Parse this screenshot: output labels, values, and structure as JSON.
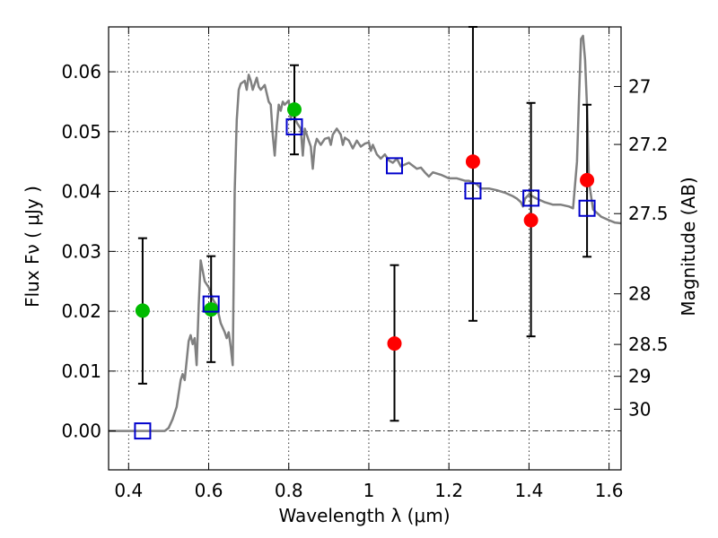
{
  "chart_data": {
    "type": "scatter",
    "xlabel": "Wavelength  λ (μm)",
    "ylabel_left": "Flux  Fν  ( μJy )",
    "ylabel_right": "Magnitude (AB)",
    "xlim": [
      0.35,
      1.63
    ],
    "ylim": [
      -0.0065,
      0.0675
    ],
    "grid": true,
    "x_ticks": [
      {
        "value": 0.4,
        "label": "0.4"
      },
      {
        "value": 0.6,
        "label": "0.6"
      },
      {
        "value": 0.8,
        "label": "0.8"
      },
      {
        "value": 1.0,
        "label": "1"
      },
      {
        "value": 1.2,
        "label": "1.2"
      },
      {
        "value": 1.4,
        "label": "1.4"
      },
      {
        "value": 1.6,
        "label": "1.6"
      }
    ],
    "y_ticks": [
      {
        "value": 0.0,
        "label": "0.00"
      },
      {
        "value": 0.01,
        "label": "0.01"
      },
      {
        "value": 0.02,
        "label": "0.02"
      },
      {
        "value": 0.03,
        "label": "0.03"
      },
      {
        "value": 0.04,
        "label": "0.04"
      },
      {
        "value": 0.05,
        "label": "0.05"
      },
      {
        "value": 0.06,
        "label": "0.06"
      }
    ],
    "right_ticks": [
      {
        "mag": 27.0,
        "label": "27"
      },
      {
        "mag": 27.2,
        "label": "27.2"
      },
      {
        "mag": 27.5,
        "label": "27.5"
      },
      {
        "mag": 28.0,
        "label": "28"
      },
      {
        "mag": 28.5,
        "label": "28.5"
      },
      {
        "mag": 29.0,
        "label": "29"
      },
      {
        "mag": 30.0,
        "label": "30"
      }
    ],
    "model_color": "#808080",
    "model_spectrum": [
      [
        0.35,
        0.0
      ],
      [
        0.49,
        0.0
      ],
      [
        0.5,
        0.0005
      ],
      [
        0.51,
        0.002
      ],
      [
        0.52,
        0.004
      ],
      [
        0.53,
        0.0085
      ],
      [
        0.535,
        0.0095
      ],
      [
        0.54,
        0.0085
      ],
      [
        0.55,
        0.015
      ],
      [
        0.555,
        0.016
      ],
      [
        0.56,
        0.0145
      ],
      [
        0.565,
        0.0155
      ],
      [
        0.57,
        0.011
      ],
      [
        0.575,
        0.021
      ],
      [
        0.58,
        0.0285
      ],
      [
        0.59,
        0.025
      ],
      [
        0.6,
        0.024
      ],
      [
        0.61,
        0.022
      ],
      [
        0.62,
        0.021
      ],
      [
        0.63,
        0.018
      ],
      [
        0.64,
        0.0165
      ],
      [
        0.645,
        0.0155
      ],
      [
        0.65,
        0.0165
      ],
      [
        0.655,
        0.014
      ],
      [
        0.66,
        0.011
      ],
      [
        0.665,
        0.04
      ],
      [
        0.67,
        0.052
      ],
      [
        0.675,
        0.057
      ],
      [
        0.68,
        0.058
      ],
      [
        0.69,
        0.0585
      ],
      [
        0.695,
        0.057
      ],
      [
        0.7,
        0.0595
      ],
      [
        0.705,
        0.0585
      ],
      [
        0.71,
        0.057
      ],
      [
        0.72,
        0.059
      ],
      [
        0.725,
        0.0575
      ],
      [
        0.73,
        0.057
      ],
      [
        0.74,
        0.0578
      ],
      [
        0.75,
        0.055
      ],
      [
        0.755,
        0.0545
      ],
      [
        0.76,
        0.0495
      ],
      [
        0.765,
        0.046
      ],
      [
        0.77,
        0.051
      ],
      [
        0.775,
        0.0545
      ],
      [
        0.78,
        0.0535
      ],
      [
        0.785,
        0.055
      ],
      [
        0.79,
        0.0545
      ],
      [
        0.8,
        0.0552
      ],
      [
        0.805,
        0.052
      ],
      [
        0.81,
        0.0535
      ],
      [
        0.82,
        0.0515
      ],
      [
        0.83,
        0.0505
      ],
      [
        0.835,
        0.046
      ],
      [
        0.84,
        0.0505
      ],
      [
        0.85,
        0.0485
      ],
      [
        0.855,
        0.0475
      ],
      [
        0.86,
        0.0438
      ],
      [
        0.865,
        0.0475
      ],
      [
        0.87,
        0.0488
      ],
      [
        0.88,
        0.0478
      ],
      [
        0.89,
        0.0488
      ],
      [
        0.9,
        0.049
      ],
      [
        0.905,
        0.0478
      ],
      [
        0.91,
        0.0495
      ],
      [
        0.92,
        0.0505
      ],
      [
        0.93,
        0.0495
      ],
      [
        0.935,
        0.0478
      ],
      [
        0.94,
        0.049
      ],
      [
        0.95,
        0.0485
      ],
      [
        0.96,
        0.0472
      ],
      [
        0.97,
        0.0485
      ],
      [
        0.98,
        0.0475
      ],
      [
        0.99,
        0.048
      ],
      [
        1.0,
        0.0482
      ],
      [
        1.005,
        0.0468
      ],
      [
        1.01,
        0.0478
      ],
      [
        1.02,
        0.0462
      ],
      [
        1.03,
        0.0455
      ],
      [
        1.04,
        0.0462
      ],
      [
        1.05,
        0.0452
      ],
      [
        1.06,
        0.0448
      ],
      [
        1.07,
        0.0455
      ],
      [
        1.08,
        0.0442
      ],
      [
        1.1,
        0.0448
      ],
      [
        1.12,
        0.0438
      ],
      [
        1.13,
        0.044
      ],
      [
        1.14,
        0.0432
      ],
      [
        1.15,
        0.0425
      ],
      [
        1.16,
        0.0432
      ],
      [
        1.18,
        0.0428
      ],
      [
        1.2,
        0.0422
      ],
      [
        1.22,
        0.0422
      ],
      [
        1.24,
        0.0418
      ],
      [
        1.25,
        0.0418
      ],
      [
        1.27,
        0.0412
      ],
      [
        1.28,
        0.0405
      ],
      [
        1.3,
        0.0405
      ],
      [
        1.32,
        0.0402
      ],
      [
        1.34,
        0.0398
      ],
      [
        1.36,
        0.0392
      ],
      [
        1.37,
        0.0388
      ],
      [
        1.38,
        0.0382
      ],
      [
        1.385,
        0.0375
      ],
      [
        1.39,
        0.0388
      ],
      [
        1.4,
        0.0395
      ],
      [
        1.42,
        0.0388
      ],
      [
        1.44,
        0.0382
      ],
      [
        1.46,
        0.0378
      ],
      [
        1.48,
        0.0378
      ],
      [
        1.5,
        0.0375
      ],
      [
        1.51,
        0.0372
      ],
      [
        1.52,
        0.045
      ],
      [
        1.525,
        0.056
      ],
      [
        1.53,
        0.0655
      ],
      [
        1.535,
        0.066
      ],
      [
        1.54,
        0.062
      ],
      [
        1.545,
        0.054
      ],
      [
        1.55,
        0.0415
      ],
      [
        1.56,
        0.037
      ],
      [
        1.58,
        0.0358
      ],
      [
        1.6,
        0.0352
      ],
      [
        1.615,
        0.0348
      ],
      [
        1.63,
        0.0347
      ]
    ],
    "series": [
      {
        "marker": "circle",
        "color": "#00bb00",
        "points": [
          {
            "x": 0.435,
            "y": 0.0201,
            "ylo": 0.0079,
            "yhi": 0.0322
          },
          {
            "x": 0.606,
            "y": 0.0203,
            "ylo": 0.0115,
            "yhi": 0.0292
          },
          {
            "x": 0.814,
            "y": 0.0537,
            "ylo": 0.0462,
            "yhi": 0.0611
          }
        ]
      },
      {
        "marker": "circle",
        "color": "#ff0000",
        "points": [
          {
            "x": 1.064,
            "y": 0.0146,
            "ylo": 0.0017,
            "yhi": 0.0277
          },
          {
            "x": 1.26,
            "y": 0.045,
            "ylo": 0.0184,
            "yhi": 0.0675
          },
          {
            "x": 1.405,
            "y": 0.0352,
            "ylo": 0.0158,
            "yhi": 0.0548
          },
          {
            "x": 1.545,
            "y": 0.0419,
            "ylo": 0.0291,
            "yhi": 0.0545
          }
        ]
      },
      {
        "marker": "square",
        "color": "#0000cc",
        "points": [
          {
            "x": 0.435,
            "y": 0.0
          },
          {
            "x": 0.606,
            "y": 0.0212
          },
          {
            "x": 0.814,
            "y": 0.0508
          },
          {
            "x": 1.064,
            "y": 0.0443
          },
          {
            "x": 1.26,
            "y": 0.0401
          },
          {
            "x": 1.405,
            "y": 0.0389
          },
          {
            "x": 1.545,
            "y": 0.0372
          }
        ]
      }
    ]
  }
}
